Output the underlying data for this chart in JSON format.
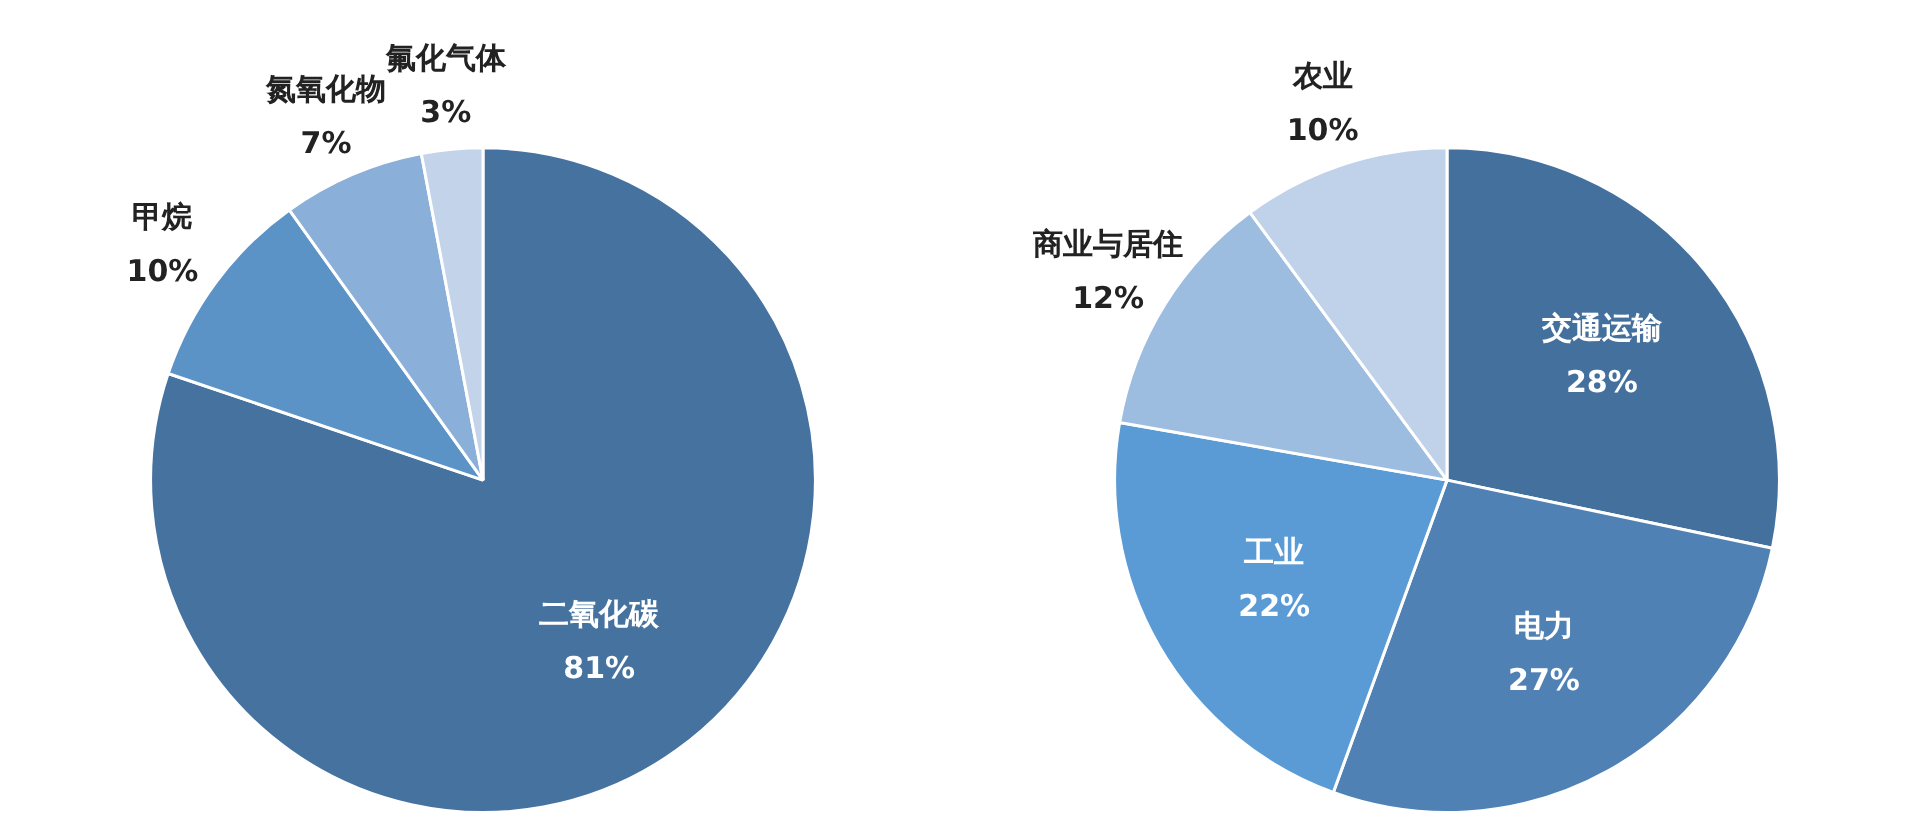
{
  "chart_data": [
    {
      "type": "pie",
      "categories": [
        "二氧化碳",
        "甲烷",
        "氮氧化物",
        "氟化气体"
      ],
      "values": [
        81,
        10,
        7,
        3
      ],
      "value_labels": [
        "81%",
        "10%",
        "7%",
        "3%"
      ],
      "colors": [
        "#4672a0",
        "#5b93c7",
        "#8aafd8",
        "#c3d3ea"
      ]
    },
    {
      "type": "pie",
      "categories": [
        "交通运输",
        "电力",
        "工业",
        "商业与居住",
        "农业"
      ],
      "values": [
        28,
        27,
        22,
        12,
        10
      ],
      "value_labels": [
        "28%",
        "27%",
        "22%",
        "12%",
        "10%"
      ],
      "colors": [
        "#44709e",
        "#4f81b5",
        "#5b9bd5",
        "#9cbce0",
        "#c0d1ea"
      ]
    }
  ]
}
